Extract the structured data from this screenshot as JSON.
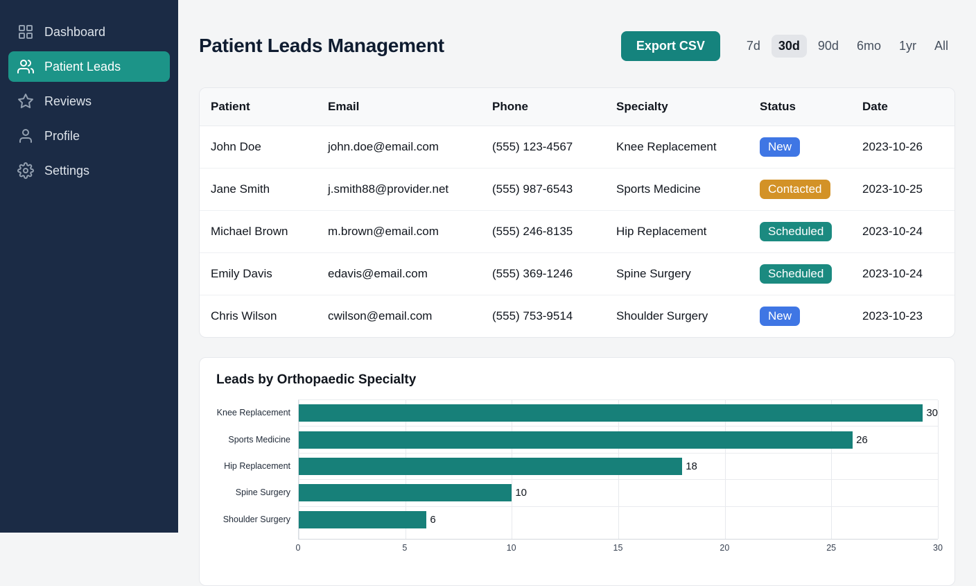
{
  "sidebar": {
    "items": [
      {
        "label": "Dashboard",
        "icon": "dashboard-grid-icon",
        "active": false
      },
      {
        "label": "Patient Leads",
        "icon": "users-icon",
        "active": true
      },
      {
        "label": "Reviews",
        "icon": "star-icon",
        "active": false
      },
      {
        "label": "Profile",
        "icon": "user-icon",
        "active": false
      },
      {
        "label": "Settings",
        "icon": "gear-icon",
        "active": false
      }
    ]
  },
  "header": {
    "title": "Patient Leads Management",
    "export_button": "Export CSV",
    "time_ranges": [
      "7d",
      "30d",
      "90d",
      "6mo",
      "1yr",
      "All"
    ],
    "active_range": "30d"
  },
  "table": {
    "columns": [
      "Patient",
      "Email",
      "Phone",
      "Specialty",
      "Status",
      "Date"
    ],
    "rows": [
      {
        "patient": "John Doe",
        "email": "john.doe@email.com",
        "phone": "(555) 123-4567",
        "specialty": "Knee Replacement",
        "status": "New",
        "date": "2023-10-26"
      },
      {
        "patient": "Jane Smith",
        "email": "j.smith88@provider.net",
        "phone": "(555) 987-6543",
        "specialty": "Sports Medicine",
        "status": "Contacted",
        "date": "2023-10-25"
      },
      {
        "patient": "Michael Brown",
        "email": "m.brown@email.com",
        "phone": "(555) 246-8135",
        "specialty": "Hip Replacement",
        "status": "Scheduled",
        "date": "2023-10-24"
      },
      {
        "patient": "Emily Davis",
        "email": "edavis@email.com",
        "phone": "(555) 369-1246",
        "specialty": "Spine Surgery",
        "status": "Scheduled",
        "date": "2023-10-24"
      },
      {
        "patient": "Chris Wilson",
        "email": "cwilson@email.com",
        "phone": "(555) 753-9514",
        "specialty": "Shoulder Surgery",
        "status": "New",
        "date": "2023-10-23"
      }
    ],
    "status_colors": {
      "New": "#3f76e4",
      "Contacted": "#d39227",
      "Scheduled": "#1b8a80"
    }
  },
  "chart_data": {
    "type": "bar",
    "orientation": "horizontal",
    "title": "Leads by Orthopaedic Specialty",
    "categories": [
      "Knee Replacement",
      "Sports Medicine",
      "Hip Replacement",
      "Spine Surgery",
      "Shoulder Surgery"
    ],
    "values": [
      30,
      26,
      18,
      10,
      6
    ],
    "xlabel": "",
    "ylabel": "",
    "xlim": [
      0,
      30
    ],
    "xticks": [
      0,
      5,
      10,
      15,
      20,
      25,
      30
    ],
    "grid": true,
    "value_labels": true,
    "bar_color": "#178079",
    "legend": false
  },
  "colors": {
    "sidebar_bg": "#1b2b45",
    "accent_teal": "#1c9488",
    "button_teal": "#15837d",
    "badge_new": "#3f76e4",
    "badge_contacted": "#d39227",
    "badge_scheduled": "#1b8a80",
    "main_bg": "#f4f5f6"
  }
}
